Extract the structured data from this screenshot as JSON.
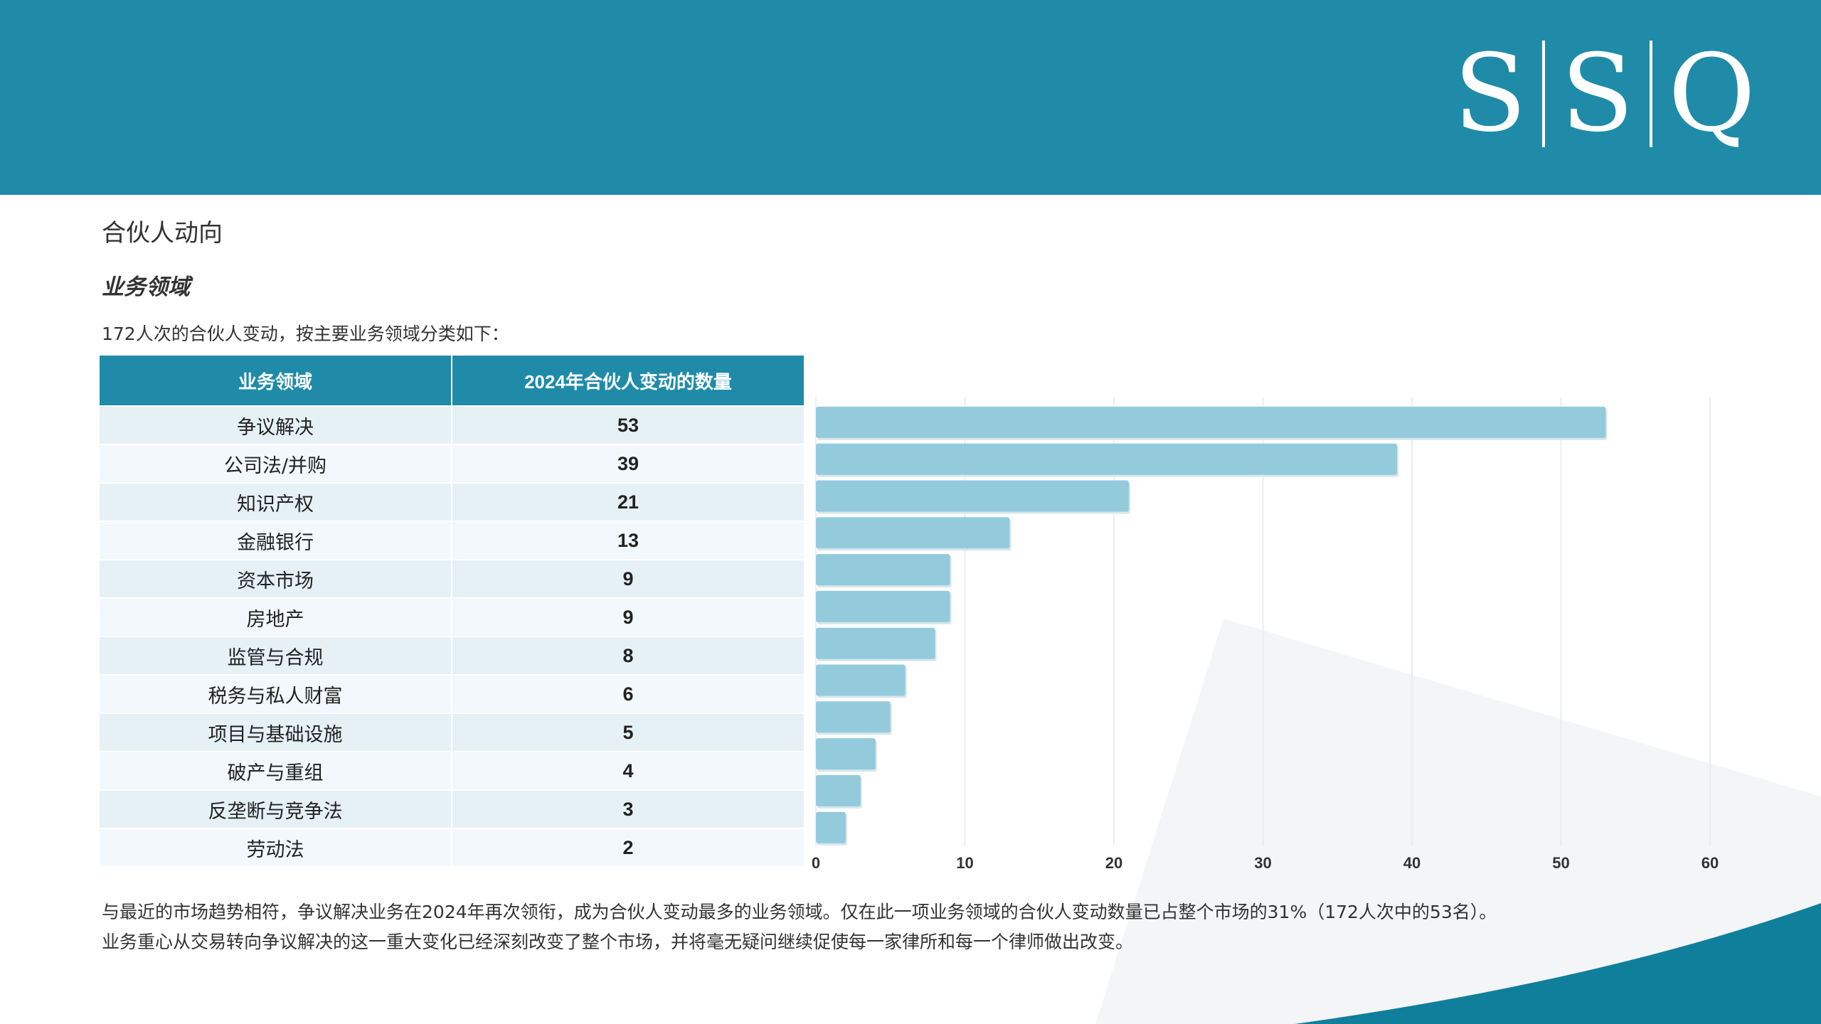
{
  "brand": {
    "logo_letters": [
      "S",
      "S",
      "Q"
    ]
  },
  "colors": {
    "header": "#1f8ba9",
    "bar": "#93cbdd",
    "row_odd": "#e6f1f6",
    "row_even": "#f2f8fb"
  },
  "heading": "合伙人动向",
  "subheading": "业务领域",
  "intro": "172人次的合伙人变动，按主要业务领域分类如下：",
  "table": {
    "headers": [
      "业务领域",
      "2024年合伙人变动的数量"
    ]
  },
  "chart_data": {
    "type": "bar",
    "orientation": "horizontal",
    "categories": [
      "争议解决",
      "公司法/并购",
      "知识产权",
      "金融银行",
      "资本市场",
      "房地产",
      "监管与合规",
      "税务与私人财富",
      "项目与基础设施",
      "破产与重组",
      "反垄断与竞争法",
      "劳动法"
    ],
    "values": [
      53,
      39,
      21,
      13,
      9,
      9,
      8,
      6,
      5,
      4,
      3,
      2
    ],
    "xlim": [
      0,
      60
    ],
    "xticks": [
      0,
      10,
      20,
      30,
      40,
      50,
      60
    ],
    "grid": true
  },
  "footer": {
    "line1": "与最近的市场趋势相符，争议解决业务在2024年再次领衔，成为合伙人变动最多的业务领域。仅在此一项业务领域的合伙人变动数量已占整个市场的31%（172人次中的53名）。",
    "line2": "业务重心从交易转向争议解决的这一重大变化已经深刻改变了整个市场，并将毫无疑问继续促使每一家律所和每一个律师做出改变。"
  }
}
